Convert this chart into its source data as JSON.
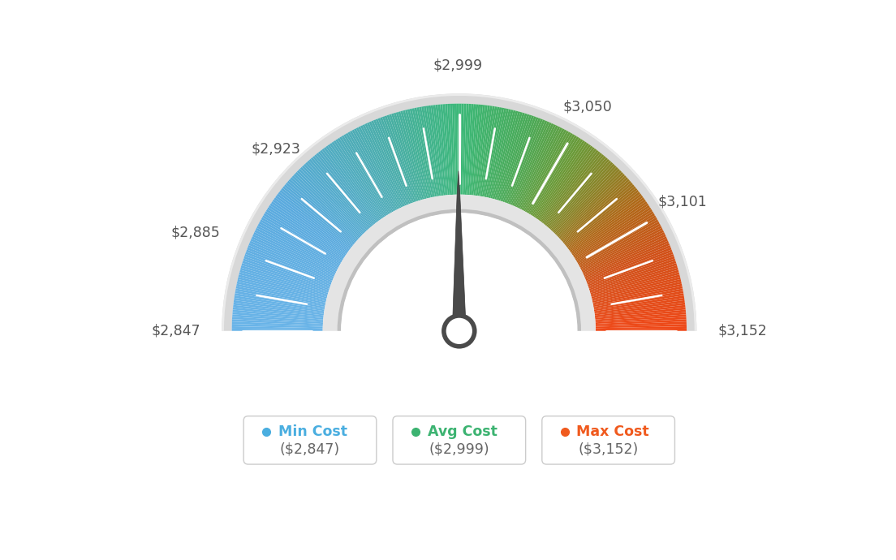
{
  "min_val": 2847,
  "avg_val": 2999,
  "max_val": 3152,
  "tick_labels": [
    "$2,847",
    "$2,885",
    "$2,923",
    "$2,999",
    "$3,050",
    "$3,101",
    "$3,152"
  ],
  "tick_values": [
    2847,
    2885,
    2923,
    2999,
    3050,
    3101,
    3152
  ],
  "legend_items": [
    {
      "label": "Min Cost",
      "value": "($2,847)",
      "color": "#4aaee0"
    },
    {
      "label": "Avg Cost",
      "value": "($2,999)",
      "color": "#3cb371"
    },
    {
      "label": "Max Cost",
      "value": "($3,152)",
      "color": "#f05a1e"
    }
  ],
  "background_color": "#ffffff",
  "color_stops": [
    [
      0.0,
      "#6ab4e8"
    ],
    [
      0.2,
      "#5aaade"
    ],
    [
      0.38,
      "#4aadaa"
    ],
    [
      0.5,
      "#3cb878"
    ],
    [
      0.6,
      "#4aaa58"
    ],
    [
      0.68,
      "#6a9a38"
    ],
    [
      0.74,
      "#8a8428"
    ],
    [
      0.8,
      "#b06818"
    ],
    [
      0.88,
      "#d05018"
    ],
    [
      1.0,
      "#f04818"
    ]
  ],
  "n_minor_ticks": 19
}
